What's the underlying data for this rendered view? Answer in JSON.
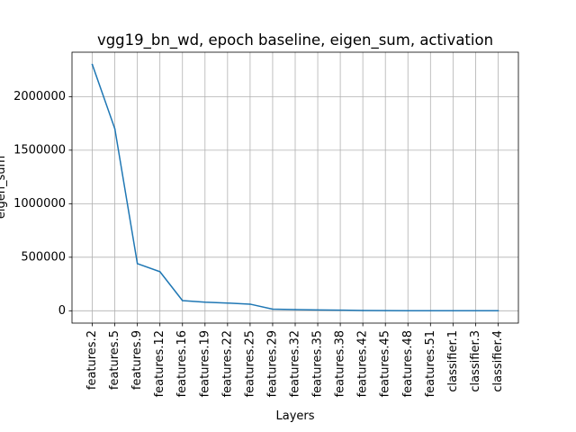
{
  "chart_data": {
    "type": "line",
    "title": "vgg19_bn_wd, epoch baseline, eigen_sum, activation",
    "xlabel": "Layers",
    "ylabel": "eigen_sum",
    "categories": [
      "features.2",
      "features.5",
      "features.9",
      "features.12",
      "features.16",
      "features.19",
      "features.22",
      "features.25",
      "features.29",
      "features.32",
      "features.35",
      "features.38",
      "features.42",
      "features.45",
      "features.48",
      "features.51",
      "classifier.1",
      "classifier.3",
      "classifier.4"
    ],
    "series": [
      {
        "values": [
          2300000,
          1700000,
          440000,
          365000,
          95000,
          80000,
          72000,
          62000,
          15000,
          11000,
          8000,
          6000,
          2500,
          1500,
          1000,
          700,
          400,
          250,
          150
        ],
        "color": "#1f77b4"
      }
    ],
    "yticks": [
      0,
      500000,
      1000000,
      1500000,
      2000000
    ],
    "ytick_labels": [
      "0",
      "500000",
      "1000000",
      "1500000",
      "2000000"
    ],
    "ylim": [
      -115000,
      2415000
    ],
    "grid": true,
    "legend": "none"
  }
}
